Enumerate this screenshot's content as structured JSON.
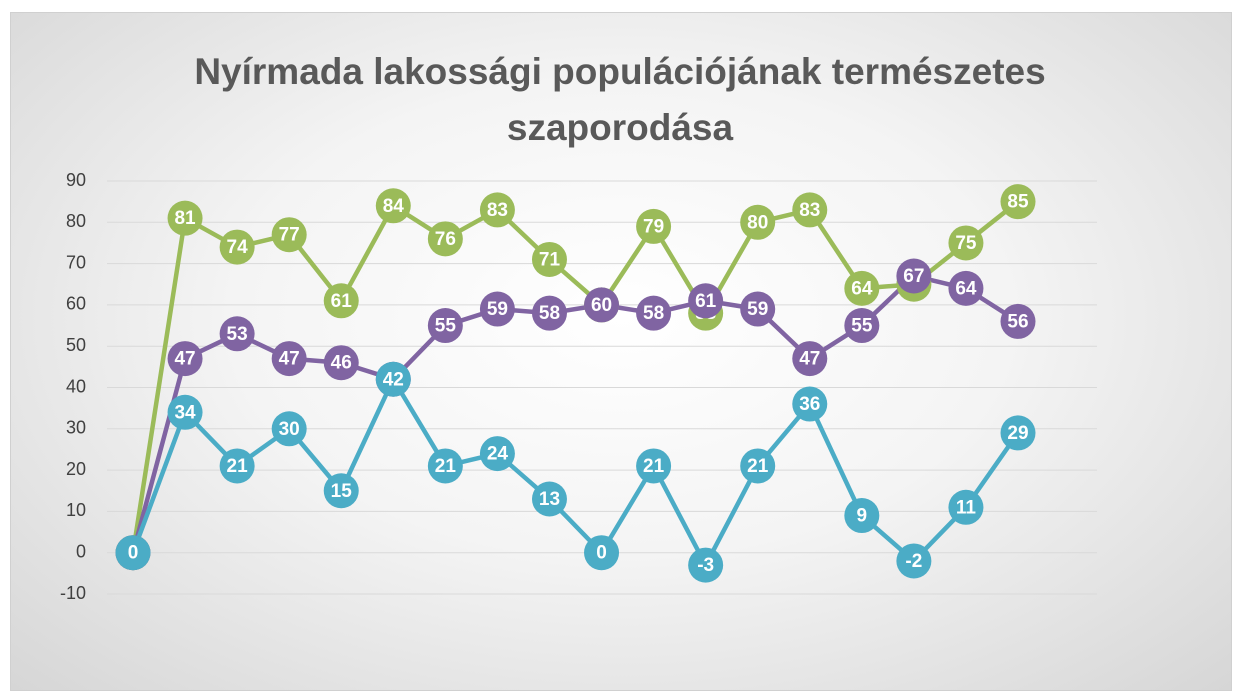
{
  "chart_data": {
    "type": "line",
    "title": "Nyírmada lakossági populációjának természetes szaporodása",
    "categories": [
      null,
      null,
      null,
      null,
      null,
      null,
      null,
      null,
      null,
      null,
      null,
      null,
      null,
      null,
      null,
      null,
      null,
      null
    ],
    "series": [
      {
        "name": null,
        "color": "#9bbb59",
        "values": [
          0,
          81,
          74,
          77,
          61,
          84,
          76,
          83,
          71,
          60,
          79,
          58,
          80,
          83,
          64,
          65,
          75,
          85
        ]
      },
      {
        "name": null,
        "color": "#8064a2",
        "values": [
          0,
          47,
          53,
          47,
          46,
          42,
          55,
          59,
          58,
          60,
          58,
          61,
          59,
          47,
          55,
          67,
          64,
          56
        ]
      },
      {
        "name": null,
        "color": "#4bacc6",
        "values": [
          0,
          34,
          21,
          30,
          15,
          42,
          21,
          24,
          13,
          0,
          21,
          -3,
          21,
          36,
          9,
          -2,
          11,
          29
        ]
      }
    ],
    "ylim": [
      -10,
      90
    ],
    "yticks": [
      -10,
      0,
      10,
      20,
      30,
      40,
      50,
      60,
      70,
      80,
      90
    ],
    "grid": true,
    "data_labels": true
  }
}
